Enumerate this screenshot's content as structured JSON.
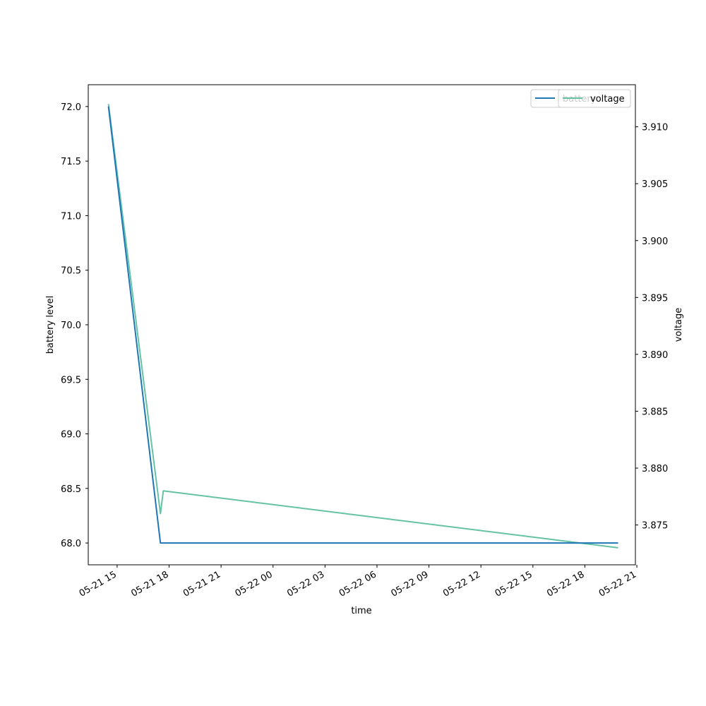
{
  "chart_data": {
    "type": "line",
    "xlabel": "time",
    "ylabel_left": "battery level",
    "ylabel_right": "voltage",
    "x_axis": {
      "type": "datetime",
      "range": [
        "2021-05-21 13:20",
        "2021-05-22 20:55"
      ],
      "tick_values": [
        "2021-05-21 15:00",
        "2021-05-21 18:00",
        "2021-05-21 21:00",
        "2021-05-22 00:00",
        "2021-05-22 03:00",
        "2021-05-22 06:00",
        "2021-05-22 09:00",
        "2021-05-22 12:00",
        "2021-05-22 15:00",
        "2021-05-22 18:00",
        "2021-05-22 21:00"
      ],
      "tick_labels": [
        "05-21 15",
        "05-21 18",
        "05-21 21",
        "05-22 00",
        "05-22 03",
        "05-22 06",
        "05-22 09",
        "05-22 12",
        "05-22 15",
        "05-22 18",
        "05-22 21"
      ]
    },
    "y_left": {
      "range": [
        67.8,
        72.2
      ],
      "ticks": [
        "68.0",
        "68.5",
        "69.0",
        "69.5",
        "70.0",
        "70.5",
        "71.0",
        "71.5",
        "72.0"
      ]
    },
    "y_right": {
      "range": [
        3.8715,
        3.9137
      ],
      "ticks": [
        "3.875",
        "3.880",
        "3.885",
        "3.890",
        "3.895",
        "3.900",
        "3.905",
        "3.910"
      ]
    },
    "series": [
      {
        "name": "battery",
        "axis": "left",
        "color": "#1f77b4",
        "x": [
          "2021-05-21 14:30",
          "2021-05-21 17:30",
          "2021-05-22 19:55"
        ],
        "y": [
          72.0,
          68.0,
          68.0
        ]
      },
      {
        "name": "voltage",
        "axis": "right",
        "color": "#66c2a5",
        "x": [
          "2021-05-21 14:30",
          "2021-05-21 17:30",
          "2021-05-21 17:40",
          "2021-05-22 19:55"
        ],
        "y": [
          3.912,
          3.876,
          3.878,
          3.873
        ]
      }
    ],
    "legends": [
      {
        "entries": [
          "battery"
        ],
        "placement": "top-right"
      },
      {
        "entries": [
          "voltage"
        ],
        "placement": "top-right"
      }
    ],
    "grid": false
  }
}
